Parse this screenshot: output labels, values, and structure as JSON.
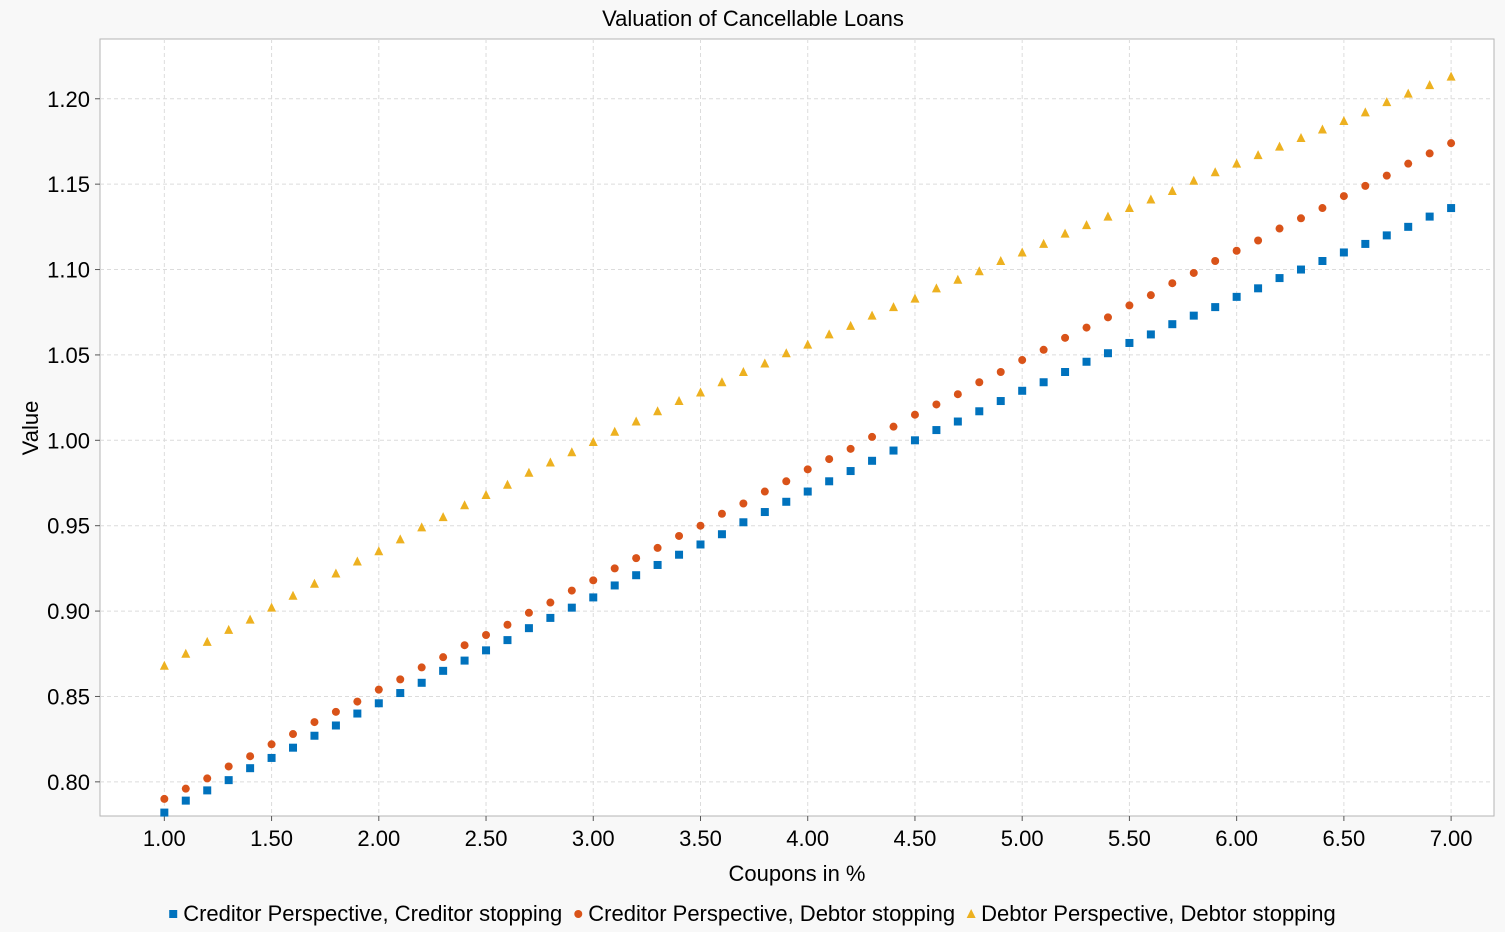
{
  "chart_data": {
    "type": "scatter",
    "title": "Valuation of Cancellable Loans",
    "xlabel": "Coupons in %",
    "ylabel": "Value",
    "xlim": [
      0.7,
      7.2
    ],
    "ylim": [
      0.78,
      1.235
    ],
    "xticks": [
      1.0,
      1.5,
      2.0,
      2.5,
      3.0,
      3.5,
      4.0,
      4.5,
      5.0,
      5.5,
      6.0,
      6.5,
      7.0
    ],
    "xtick_labels": [
      "1.00",
      "1.50",
      "2.00",
      "2.50",
      "3.00",
      "3.50",
      "4.00",
      "4.50",
      "5.00",
      "5.50",
      "6.00",
      "6.50",
      "7.00"
    ],
    "yticks": [
      0.8,
      0.85,
      0.9,
      0.95,
      1.0,
      1.05,
      1.1,
      1.15,
      1.2
    ],
    "ytick_labels": [
      "0.80",
      "0.85",
      "0.90",
      "0.95",
      "1.00",
      "1.05",
      "1.10",
      "1.15",
      "1.20"
    ],
    "grid": true,
    "legend_position": "bottom",
    "x": [
      1.0,
      1.1,
      1.2,
      1.3,
      1.4,
      1.5,
      1.6,
      1.7,
      1.8,
      1.9,
      2.0,
      2.1,
      2.2,
      2.3,
      2.4,
      2.5,
      2.6,
      2.7,
      2.8,
      2.9,
      3.0,
      3.1,
      3.2,
      3.3,
      3.4,
      3.5,
      3.6,
      3.7,
      3.8,
      3.9,
      4.0,
      4.1,
      4.2,
      4.3,
      4.4,
      4.5,
      4.6,
      4.7,
      4.8,
      4.9,
      5.0,
      5.1,
      5.2,
      5.3,
      5.4,
      5.5,
      5.6,
      5.7,
      5.8,
      5.9,
      6.0,
      6.1,
      6.2,
      6.3,
      6.4,
      6.5,
      6.6,
      6.7,
      6.8,
      6.9,
      7.0
    ],
    "series": [
      {
        "name": "Creditor Perspective, Creditor stopping",
        "marker": "square",
        "color": "#0072bd",
        "values": [
          0.782,
          0.789,
          0.795,
          0.801,
          0.808,
          0.814,
          0.82,
          0.827,
          0.833,
          0.84,
          0.846,
          0.852,
          0.858,
          0.865,
          0.871,
          0.877,
          0.883,
          0.89,
          0.896,
          0.902,
          0.908,
          0.915,
          0.921,
          0.927,
          0.933,
          0.939,
          0.945,
          0.952,
          0.958,
          0.964,
          0.97,
          0.976,
          0.982,
          0.988,
          0.994,
          1.0,
          1.006,
          1.011,
          1.017,
          1.023,
          1.029,
          1.034,
          1.04,
          1.046,
          1.051,
          1.057,
          1.062,
          1.068,
          1.073,
          1.078,
          1.084,
          1.089,
          1.095,
          1.1,
          1.105,
          1.11,
          1.115,
          1.12,
          1.125,
          1.131,
          1.136
        ]
      },
      {
        "name": "Creditor Perspective, Debtor stopping",
        "marker": "circle",
        "color": "#d95319",
        "values": [
          0.79,
          0.796,
          0.802,
          0.809,
          0.815,
          0.822,
          0.828,
          0.835,
          0.841,
          0.847,
          0.854,
          0.86,
          0.867,
          0.873,
          0.88,
          0.886,
          0.892,
          0.899,
          0.905,
          0.912,
          0.918,
          0.925,
          0.931,
          0.937,
          0.944,
          0.95,
          0.957,
          0.963,
          0.97,
          0.976,
          0.983,
          0.989,
          0.995,
          1.002,
          1.008,
          1.015,
          1.021,
          1.027,
          1.034,
          1.04,
          1.047,
          1.053,
          1.06,
          1.066,
          1.072,
          1.079,
          1.085,
          1.092,
          1.098,
          1.105,
          1.111,
          1.117,
          1.124,
          1.13,
          1.136,
          1.143,
          1.149,
          1.155,
          1.162,
          1.168,
          1.174
        ]
      },
      {
        "name": "Debtor Perspective, Debtor stopping",
        "marker": "triangle",
        "color": "#edb120",
        "values": [
          0.868,
          0.875,
          0.882,
          0.889,
          0.895,
          0.902,
          0.909,
          0.916,
          0.922,
          0.929,
          0.935,
          0.942,
          0.949,
          0.955,
          0.962,
          0.968,
          0.974,
          0.981,
          0.987,
          0.993,
          0.999,
          1.005,
          1.011,
          1.017,
          1.023,
          1.028,
          1.034,
          1.04,
          1.045,
          1.051,
          1.056,
          1.062,
          1.067,
          1.073,
          1.078,
          1.083,
          1.089,
          1.094,
          1.099,
          1.105,
          1.11,
          1.115,
          1.121,
          1.126,
          1.131,
          1.136,
          1.141,
          1.146,
          1.152,
          1.157,
          1.162,
          1.167,
          1.172,
          1.177,
          1.182,
          1.187,
          1.192,
          1.198,
          1.203,
          1.208,
          1.213
        ]
      }
    ]
  }
}
